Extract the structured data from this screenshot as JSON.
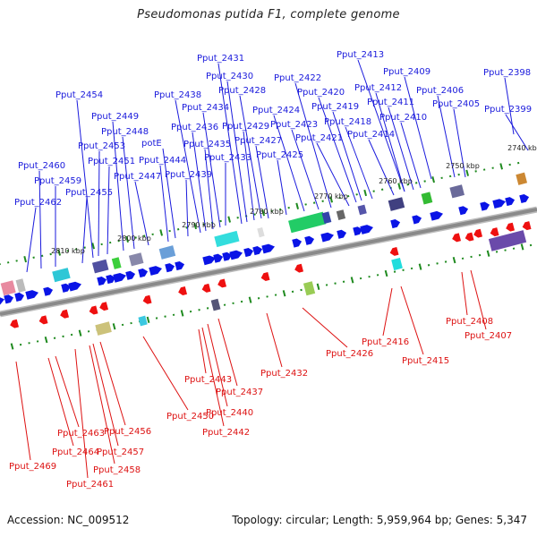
{
  "title": "Pseudomonas putida F1, complete genome",
  "accession": "Accession: NC_009512",
  "summary": "Topology: circular; Length: 5,959,964 bp; Genes: 5,347",
  "colors": {
    "forward": "#0a14e6",
    "reverse": "#ee1010",
    "forward_label": "#1a1adc",
    "reverse_label": "#dd1111",
    "backbone": "#8a8a8a",
    "tick": "#1f8a1f"
  },
  "scale_labels": [
    "2740 kbp",
    "2750 kbp",
    "2760 kbp",
    "2770 kbp",
    "2780 kbp",
    "2790 kbp",
    "2800 kbp",
    "2810 kbp"
  ],
  "forward_labels": [
    "Pput_2398",
    "Pput_2399",
    "Pput_2405",
    "Pput_2406",
    "Pput_2409",
    "Pput_2410",
    "Pput_2411",
    "Pput_2412",
    "Pput_2413",
    "Pput_2414",
    "Pput_2418",
    "Pput_2419",
    "Pput_2420",
    "Pput_2421",
    "Pput_2422",
    "Pput_2423",
    "Pput_2424",
    "Pput_2425",
    "Pput_2427",
    "Pput_2428",
    "Pput_2429",
    "Pput_2430",
    "Pput_2431",
    "Pput_2433",
    "Pput_2434",
    "Pput_2435",
    "Pput_2436",
    "Pput_2438",
    "Pput_2439",
    "potE",
    "Pput_2444",
    "Pput_2447",
    "Pput_2448",
    "Pput_2449",
    "Pput_2451",
    "Pput_2453",
    "Pput_2454",
    "Pput_2455",
    "Pput_2459",
    "Pput_2460",
    "Pput_2462"
  ],
  "reverse_labels": [
    "Pput_2407",
    "Pput_2408",
    "Pput_2415",
    "Pput_2416",
    "Pput_2426",
    "Pput_2432",
    "Pput_2437",
    "Pput_2440",
    "Pput_2442",
    "Pput_2443",
    "Pput_2450",
    "Pput_2456",
    "Pput_2457",
    "Pput_2458",
    "Pput_2461",
    "Pput_2463",
    "Pput_2464",
    "Pput_2469"
  ]
}
